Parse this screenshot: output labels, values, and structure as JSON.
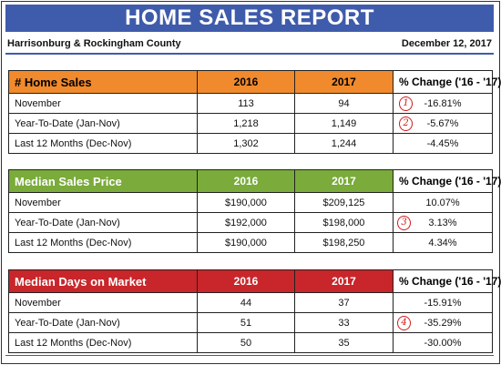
{
  "title": "HOME SALES REPORT",
  "location": "Harrisonburg & Rockingham County",
  "date": "December 12, 2017",
  "columns": {
    "y2016": "2016",
    "y2017": "2017",
    "pct": "% Change ('16 - '17)"
  },
  "colors": {
    "banner": "#3f5bab",
    "sales": "#f08a2c",
    "price": "#7aab3b",
    "days": "#c8262b",
    "marker": "#d21a1a"
  },
  "tables": [
    {
      "name": "# Home Sales",
      "rows": [
        {
          "label": "November",
          "v2016": "113",
          "v2017": "94",
          "pct": "-16.81%",
          "mark": "1"
        },
        {
          "label": "Year-To-Date (Jan-Nov)",
          "v2016": "1,218",
          "v2017": "1,149",
          "pct": "-5.67%",
          "mark": "2"
        },
        {
          "label": "Last 12 Months (Dec-Nov)",
          "v2016": "1,302",
          "v2017": "1,244",
          "pct": "-4.45%",
          "mark": ""
        }
      ]
    },
    {
      "name": "Median Sales Price",
      "rows": [
        {
          "label": "November",
          "v2016": "$190,000",
          "v2017": "$209,125",
          "pct": "10.07%",
          "mark": ""
        },
        {
          "label": "Year-To-Date (Jan-Nov)",
          "v2016": "$192,000",
          "v2017": "$198,000",
          "pct": "3.13%",
          "mark": "3"
        },
        {
          "label": "Last 12 Months (Dec-Nov)",
          "v2016": "$190,000",
          "v2017": "$198,250",
          "pct": "4.34%",
          "mark": ""
        }
      ]
    },
    {
      "name": "Median Days on Market",
      "rows": [
        {
          "label": "November",
          "v2016": "44",
          "v2017": "37",
          "pct": "-15.91%",
          "mark": ""
        },
        {
          "label": "Year-To-Date (Jan-Nov)",
          "v2016": "51",
          "v2017": "33",
          "pct": "-35.29%",
          "mark": "4"
        },
        {
          "label": "Last 12 Months (Dec-Nov)",
          "v2016": "50",
          "v2017": "35",
          "pct": "-30.00%",
          "mark": ""
        }
      ]
    }
  ]
}
